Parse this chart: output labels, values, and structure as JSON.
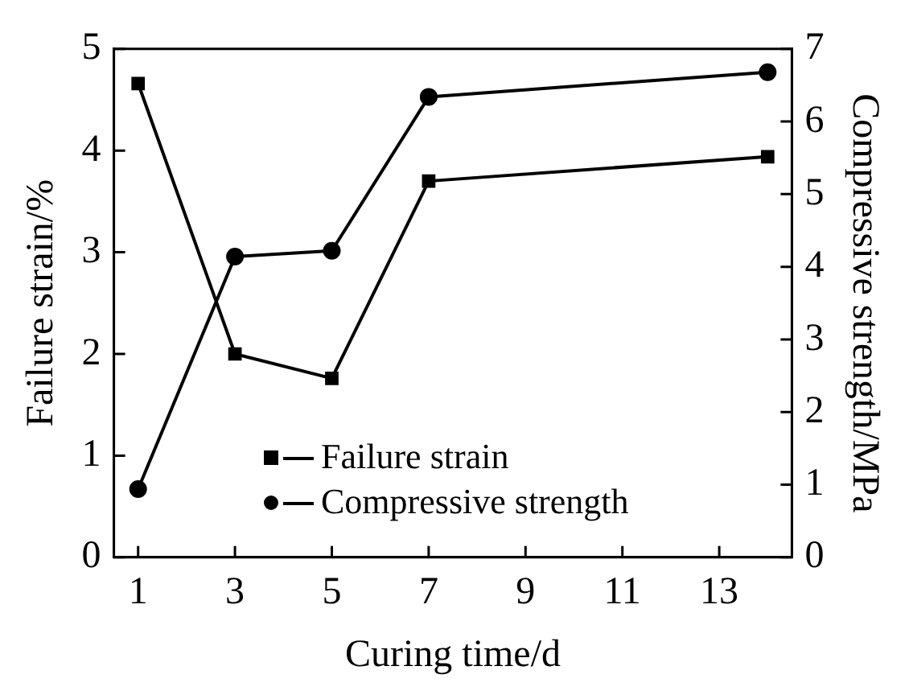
{
  "chart_data": {
    "type": "line",
    "xlabel": "Curing time/d",
    "ylabel": "Failure strain/%",
    "y2label": "Compressive strength/MPa",
    "x": [
      1,
      3,
      5,
      7,
      14
    ],
    "series": [
      {
        "name": "Failure strain",
        "color": "#000000",
        "marker": "square",
        "values": [
          4.66,
          2.0,
          1.76,
          3.7,
          3.94
        ]
      },
      {
        "name": "Compressive strength",
        "color": "#000000",
        "marker": "circle",
        "axis": "y2",
        "values": [
          0.94,
          4.14,
          4.22,
          6.34,
          6.68
        ]
      }
    ],
    "xlim": [
      0.5,
      14.5
    ],
    "xticks": [
      1,
      3,
      5,
      7,
      9,
      11,
      13
    ],
    "ylim": [
      0,
      5
    ],
    "yticks": [
      0,
      1,
      2,
      3,
      4,
      5
    ],
    "y2lim": [
      0,
      7
    ],
    "y2ticks": [
      0,
      1,
      2,
      3,
      4,
      5,
      6,
      7
    ],
    "legend": "bottom",
    "grid": false,
    "line_style": "solid"
  }
}
